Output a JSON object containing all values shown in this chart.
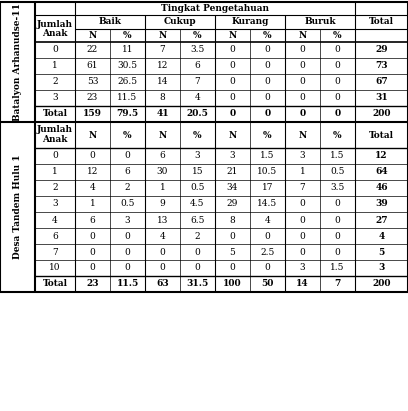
{
  "header_tingkat": "Tingkat Pengetahuan",
  "col_groups": [
    "Baik",
    "Cukup",
    "Kurang",
    "Buruk"
  ],
  "sub_labels": [
    "N",
    "%",
    "N",
    "%",
    "N",
    "%",
    "N",
    "%"
  ],
  "section1_label": "Batalyon Arhanudse-11",
  "section1_rows": [
    [
      "0",
      "22",
      "11",
      "7",
      "3.5",
      "0",
      "0",
      "0",
      "0",
      "29"
    ],
    [
      "1",
      "61",
      "30.5",
      "12",
      "6",
      "0",
      "0",
      "0",
      "0",
      "73"
    ],
    [
      "2",
      "53",
      "26.5",
      "14",
      "7",
      "0",
      "0",
      "0",
      "0",
      "67"
    ],
    [
      "3",
      "23",
      "11.5",
      "8",
      "4",
      "0",
      "0",
      "0",
      "0",
      "31"
    ]
  ],
  "section1_total": [
    "Total",
    "159",
    "79.5",
    "41",
    "20.5",
    "0",
    "0",
    "0",
    "0",
    "200"
  ],
  "section2_label": "Desa Tandem Hulu 1",
  "section2_rows": [
    [
      "0",
      "0",
      "0",
      "6",
      "3",
      "3",
      "1.5",
      "3",
      "1.5",
      "12"
    ],
    [
      "1",
      "12",
      "6",
      "30",
      "15",
      "21",
      "10.5",
      "1",
      "0.5",
      "64"
    ],
    [
      "2",
      "4",
      "2",
      "1",
      "0.5",
      "34",
      "17",
      "7",
      "3.5",
      "46"
    ],
    [
      "3",
      "1",
      "0.5",
      "9",
      "4.5",
      "29",
      "14.5",
      "0",
      "0",
      "39"
    ],
    [
      "4",
      "6",
      "3",
      "13",
      "6.5",
      "8",
      "4",
      "0",
      "0",
      "27"
    ],
    [
      "6",
      "0",
      "0",
      "4",
      "2",
      "0",
      "0",
      "0",
      "0",
      "4"
    ],
    [
      "7",
      "0",
      "0",
      "0",
      "0",
      "5",
      "2.5",
      "0",
      "0",
      "5"
    ],
    [
      "10",
      "0",
      "0",
      "0",
      "0",
      "0",
      "0",
      "3",
      "1.5",
      "3"
    ]
  ],
  "section2_total": [
    "Total",
    "23",
    "11.5",
    "63",
    "31.5",
    "100",
    "50",
    "14",
    "7",
    "200"
  ],
  "bg_color": "#ffffff",
  "text_color": "#000000",
  "font_size": 6.5,
  "bold_font_size": 6.5
}
